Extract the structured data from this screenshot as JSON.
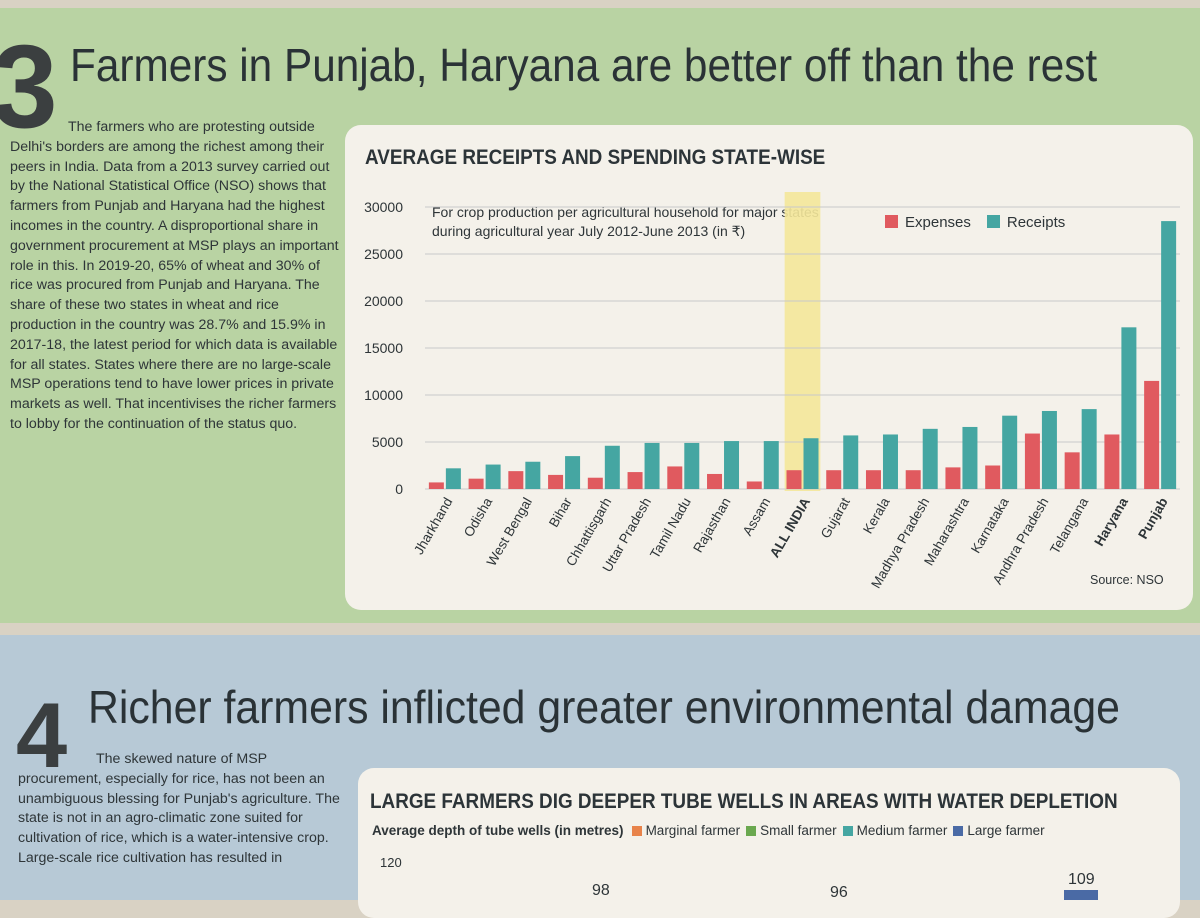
{
  "section3": {
    "number": "3",
    "headline": "Farmers in Punjab, Haryana are better off than the rest",
    "body": "The farmers who are protesting outside Delhi's borders are among the richest among their peers in India. Data from a 2013 survey carried out by the National Statistical Office (NSO) shows that farmers from Punjab and Haryana had the highest incomes in the country. A disproportional share in government procurement at MSP plays an important role in this. In 2019-20, 65% of wheat and 30% of rice was procured from Punjab and Haryana. The share of these two states in wheat and rice production in the country was 28.7% and 15.9% in 2017-18, the latest period for which data is available for all states. States where there are no large-scale MSP operations tend to have lower prices in private markets as well. That incentivises the richer farmers to lobby for the continuation of the status quo."
  },
  "section4": {
    "number": "4",
    "headline": "Richer farmers inflicted greater environmental damage",
    "body": "The skewed nature of MSP procurement, especially for rice, has not been an unambiguous blessing for Punjab's agriculture. The state is not in an agro-climatic zone suited for cultivation of rice, which is a water-intensive crop. Large-scale rice cultivation has resulted in"
  },
  "chart_data": [
    {
      "type": "bar",
      "title": "AVERAGE RECEIPTS AND SPENDING STATE-WISE",
      "subtitle": "For crop production per agricultural household for major states during agricultural year July 2012-June 2013 (in ₹)",
      "source": "Source: NSO",
      "categories": [
        "Jharkhand",
        "Odisha",
        "West Bengal",
        "Bihar",
        "Chhattisgarh",
        "Uttar Pradesh",
        "Tamil Nadu",
        "Rajasthan",
        "Assam",
        "ALL INDIA",
        "Gujarat",
        "Kerala",
        "Madhya Pradesh",
        "Maharashtra",
        "Karnataka",
        "Andhra Pradesh",
        "Telangana",
        "Haryana",
        "Punjab"
      ],
      "bold_categories": [
        "ALL INDIA",
        "Haryana",
        "Punjab"
      ],
      "highlighted_category": "ALL INDIA",
      "series": [
        {
          "name": "Expenses",
          "color": "#e05a5f",
          "values": [
            700,
            1100,
            1900,
            1500,
            1200,
            1800,
            2400,
            1600,
            800,
            2000,
            2000,
            2000,
            2000,
            2300,
            2500,
            5900,
            3900,
            5800,
            11500
          ]
        },
        {
          "name": "Receipts",
          "color": "#45a6a2",
          "values": [
            2200,
            2600,
            2900,
            3500,
            4600,
            4900,
            4900,
            5100,
            5100,
            5400,
            5700,
            5800,
            6400,
            6600,
            7800,
            8300,
            8500,
            17200,
            28500
          ]
        }
      ],
      "yticks": [
        0,
        5000,
        10000,
        15000,
        20000,
        25000,
        30000
      ],
      "ylim": [
        0,
        30000
      ],
      "legend": "top-right",
      "grid": true
    },
    {
      "type": "bar",
      "title": "LARGE FARMERS DIG DEEPER TUBE WELLS IN AREAS WITH WATER DEPLETION",
      "subtitle": "Average depth of tube wells (in metres)",
      "series": [
        {
          "name": "Marginal farmer",
          "color": "#e8834a"
        },
        {
          "name": "Small farmer",
          "color": "#6aa84f"
        },
        {
          "name": "Medium farmer",
          "color": "#45a6a2"
        },
        {
          "name": "Large farmer",
          "color": "#4a6aa5"
        }
      ],
      "yticks_visible": [
        "120"
      ],
      "visible_labels": [
        "98",
        "96",
        "109"
      ],
      "legend": "top"
    }
  ]
}
